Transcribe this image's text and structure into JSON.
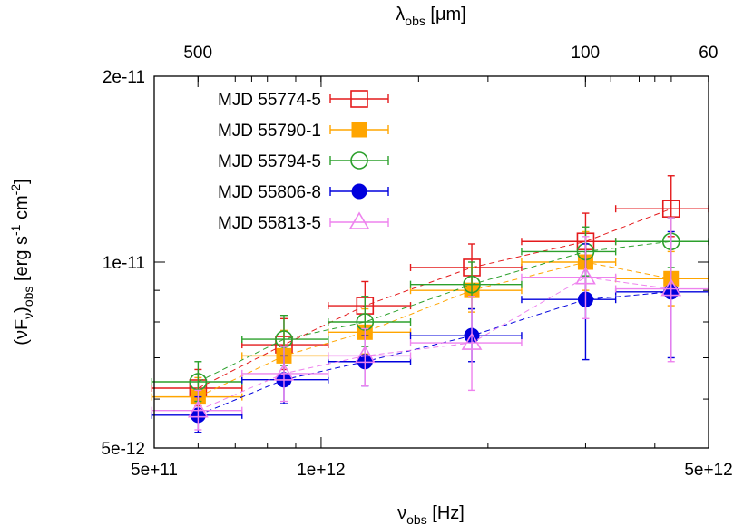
{
  "chart_data": {
    "type": "scatter",
    "xlabel": "ν_obs [Hz]",
    "ylabel": "(νF_ν)_obs [erg s^-1 cm^-2]",
    "x2label": "λ_obs [μm]",
    "x_scale": "log",
    "y_scale": "log",
    "xlim": [
      500000000000.0,
      5000000000000.0
    ],
    "ylim": [
      5e-12,
      2e-11
    ],
    "x_ticks": [
      "5e+11",
      "1e+12",
      "5e+12"
    ],
    "y_ticks": [
      "5e-12",
      "1e-11",
      "2e-11"
    ],
    "x2_ticks": [
      "500",
      "100",
      "60"
    ],
    "legend_position": "top-left",
    "series": [
      {
        "name": "MJD 55774-5",
        "color": "#e41a1c",
        "marker": "open-square",
        "points": [
          {
            "x": 600000000000.0,
            "y": 6.25e-12,
            "xlo": 495000000000.0,
            "xhi": 720000000000.0,
            "ylo": 5.85e-12,
            "yhi": 6.7e-12
          },
          {
            "x": 857000000000.0,
            "y": 7.35e-12,
            "xlo": 720000000000.0,
            "xhi": 1030000000000.0,
            "ylo": 6.7e-12,
            "yhi": 8.1e-12
          },
          {
            "x": 1200000000000.0,
            "y": 8.5e-12,
            "xlo": 1030000000000.0,
            "xhi": 1450000000000.0,
            "ylo": 7.8e-12,
            "yhi": 9.3e-12
          },
          {
            "x": 1870000000000.0,
            "y": 9.8e-12,
            "xlo": 1450000000000.0,
            "xhi": 2300000000000.0,
            "ylo": 9e-12,
            "yhi": 1.07e-11
          },
          {
            "x": 3000000000000.0,
            "y": 1.08e-11,
            "xlo": 2300000000000.0,
            "xhi": 3400000000000.0,
            "ylo": 9.8e-12,
            "yhi": 1.2e-11
          },
          {
            "x": 4280000000000.0,
            "y": 1.22e-11,
            "xlo": 3400000000000.0,
            "xhi": 5000000000000.0,
            "ylo": 1.1e-11,
            "yhi": 1.38e-11
          }
        ]
      },
      {
        "name": "MJD 55790-1",
        "color": "#ffa500",
        "marker": "filled-square",
        "points": [
          {
            "x": 600000000000.0,
            "y": 6.05e-12,
            "xlo": 495000000000.0,
            "xhi": 720000000000.0,
            "ylo": 5.6e-12,
            "yhi": 6.5e-12
          },
          {
            "x": 857000000000.0,
            "y": 7.05e-12,
            "xlo": 720000000000.0,
            "xhi": 1030000000000.0,
            "ylo": 6.4e-12,
            "yhi": 7.75e-12
          },
          {
            "x": 1200000000000.0,
            "y": 7.7e-12,
            "xlo": 1030000000000.0,
            "xhi": 1450000000000.0,
            "ylo": 7.1e-12,
            "yhi": 8.4e-12
          },
          {
            "x": 1870000000000.0,
            "y": 9e-12,
            "xlo": 1450000000000.0,
            "xhi": 2300000000000.0,
            "ylo": 8.3e-12,
            "yhi": 9.8e-12
          },
          {
            "x": 3000000000000.0,
            "y": 1e-11,
            "xlo": 2300000000000.0,
            "xhi": 3400000000000.0,
            "ylo": 9e-12,
            "yhi": 1.12e-11
          },
          {
            "x": 4280000000000.0,
            "y": 9.4e-12,
            "xlo": 3400000000000.0,
            "xhi": 5000000000000.0,
            "ylo": 8.5e-12,
            "yhi": 1.04e-11
          }
        ]
      },
      {
        "name": "MJD 55794-5",
        "color": "#2ca02c",
        "marker": "open-circle",
        "points": [
          {
            "x": 600000000000.0,
            "y": 6.4e-12,
            "xlo": 495000000000.0,
            "xhi": 720000000000.0,
            "ylo": 5.95e-12,
            "yhi": 6.9e-12
          },
          {
            "x": 857000000000.0,
            "y": 7.5e-12,
            "xlo": 720000000000.0,
            "xhi": 1030000000000.0,
            "ylo": 6.8e-12,
            "yhi": 8.2e-12
          },
          {
            "x": 1200000000000.0,
            "y": 8e-12,
            "xlo": 1030000000000.0,
            "xhi": 1450000000000.0,
            "ylo": 7.3e-12,
            "yhi": 8.8e-12
          },
          {
            "x": 1870000000000.0,
            "y": 9.2e-12,
            "xlo": 1450000000000.0,
            "xhi": 2300000000000.0,
            "ylo": 8.4e-12,
            "yhi": 1e-11
          },
          {
            "x": 3000000000000.0,
            "y": 1.04e-11,
            "xlo": 2300000000000.0,
            "xhi": 3400000000000.0,
            "ylo": 9.5e-12,
            "yhi": 1.14e-11
          },
          {
            "x": 4280000000000.0,
            "y": 1.08e-11,
            "xlo": 3400000000000.0,
            "xhi": 5000000000000.0,
            "ylo": 9.8e-12,
            "yhi": 1.18e-11
          }
        ]
      },
      {
        "name": "MJD 55806-8",
        "color": "#0000dd",
        "marker": "filled-circle",
        "points": [
          {
            "x": 600000000000.0,
            "y": 5.65e-12,
            "xlo": 495000000000.0,
            "xhi": 720000000000.0,
            "ylo": 5.3e-12,
            "yhi": 6.05e-12
          },
          {
            "x": 857000000000.0,
            "y": 6.45e-12,
            "xlo": 720000000000.0,
            "xhi": 1030000000000.0,
            "ylo": 5.9e-12,
            "yhi": 7.05e-12
          },
          {
            "x": 1200000000000.0,
            "y": 6.9e-12,
            "xlo": 1030000000000.0,
            "xhi": 1450000000000.0,
            "ylo": 6.3e-12,
            "yhi": 7.6e-12
          },
          {
            "x": 1870000000000.0,
            "y": 7.6e-12,
            "xlo": 1450000000000.0,
            "xhi": 2300000000000.0,
            "ylo": 6.9e-12,
            "yhi": 8.4e-12
          },
          {
            "x": 3000000000000.0,
            "y": 8.7e-12,
            "xlo": 2300000000000.0,
            "xhi": 3400000000000.0,
            "ylo": 6.95e-12,
            "yhi": 1.07e-11
          },
          {
            "x": 4280000000000.0,
            "y": 8.95e-12,
            "xlo": 3400000000000.0,
            "xhi": 5000000000000.0,
            "ylo": 7e-12,
            "yhi": 1.12e-11
          }
        ]
      },
      {
        "name": "MJD 55813-5",
        "color": "#ee82ee",
        "marker": "open-triangle",
        "points": [
          {
            "x": 600000000000.0,
            "y": 5.75e-12,
            "xlo": 495000000000.0,
            "xhi": 720000000000.0,
            "ylo": 5.35e-12,
            "yhi": 6.2e-12
          },
          {
            "x": 857000000000.0,
            "y": 6.6e-12,
            "xlo": 720000000000.0,
            "xhi": 1030000000000.0,
            "ylo": 5.95e-12,
            "yhi": 7.3e-12
          },
          {
            "x": 1200000000000.0,
            "y": 7.05e-12,
            "xlo": 1030000000000.0,
            "xhi": 1450000000000.0,
            "ylo": 6.3e-12,
            "yhi": 7.8e-12
          },
          {
            "x": 1870000000000.0,
            "y": 7.4e-12,
            "xlo": 1450000000000.0,
            "xhi": 2300000000000.0,
            "ylo": 6.2e-12,
            "yhi": 8.8e-12
          },
          {
            "x": 3000000000000.0,
            "y": 9.45e-12,
            "xlo": 2300000000000.0,
            "xhi": 3400000000000.0,
            "ylo": 8.1e-12,
            "yhi": 1.1e-11
          },
          {
            "x": 4280000000000.0,
            "y": 9.05e-12,
            "xlo": 3400000000000.0,
            "xhi": 5000000000000.0,
            "ylo": 6.9e-12,
            "yhi": 1.18e-11
          }
        ]
      }
    ]
  }
}
